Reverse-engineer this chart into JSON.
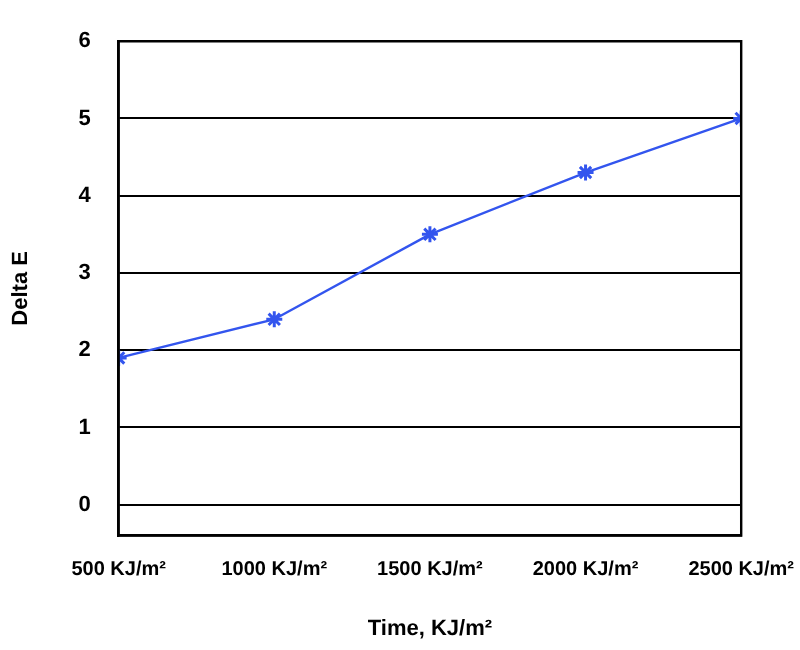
{
  "chart_data": {
    "type": "line",
    "xlabel": "Time, KJ/m²",
    "ylabel": "Delta E",
    "x": [
      500,
      1000,
      1500,
      2000,
      2500
    ],
    "series": [
      {
        "color": "#3355ee",
        "values": [
          1.9,
          2.4,
          3.5,
          4.3,
          5.0
        ]
      }
    ],
    "xlim": [
      500,
      2500
    ],
    "xticks": [
      {
        "value": 500,
        "label": "500 KJ/m²"
      },
      {
        "value": 1000,
        "label": "1000 KJ/m²"
      },
      {
        "value": 1500,
        "label": "1500 KJ/m²"
      },
      {
        "value": 2000,
        "label": "2000 KJ/m²"
      },
      {
        "value": 2500,
        "label": "2500 KJ/m²"
      }
    ],
    "ylim": [
      -0.4,
      6
    ],
    "yticks": [
      0,
      1,
      2,
      3,
      4,
      5,
      6
    ],
    "grid": "y",
    "marker": "cross",
    "line_style": "solid",
    "legend": false
  }
}
